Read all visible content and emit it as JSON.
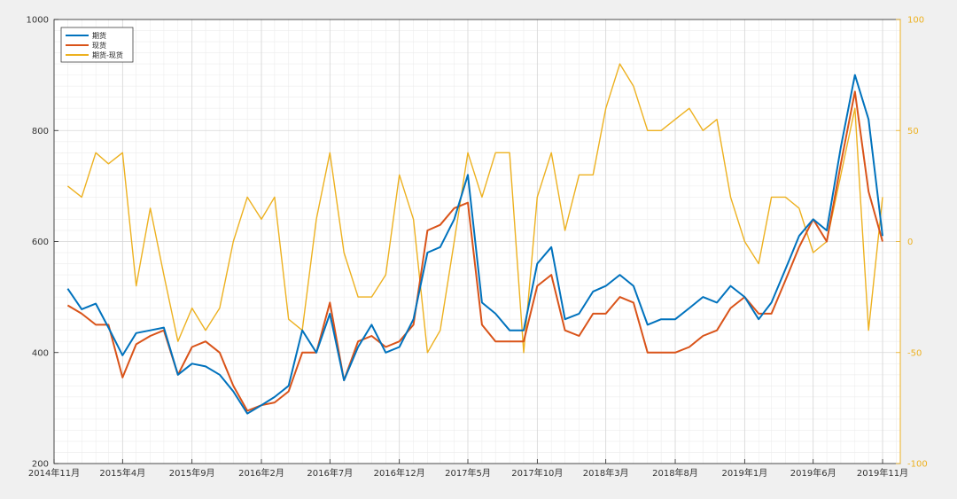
{
  "chart_data": {
    "type": "line",
    "title": "",
    "xlabel": "",
    "ylabel": "",
    "grid": true,
    "legend_position": "top-left",
    "xlim": [
      "2014-11-01",
      "2019-12-10"
    ],
    "x_ticks": [
      "2014-11-01",
      "2015-04-01",
      "2015-09-01",
      "2016-02-01",
      "2016-07-01",
      "2016-12-01",
      "2017-05-01",
      "2017-10-01",
      "2018-03-01",
      "2018-08-01",
      "2019-01-01",
      "2019-06-01",
      "2019-11-01"
    ],
    "x_tick_labels": [
      "2014年11月",
      "2015年4月",
      "2015年9月",
      "2016年2月",
      "2016年7月",
      "2016年12月",
      "2017年5月",
      "2017年10月",
      "2018年3月",
      "2018年8月",
      "2019年1月",
      "2019年6月",
      "2019年11月"
    ],
    "y_left": {
      "ylim": [
        200,
        1000
      ],
      "ticks": [
        200,
        400,
        600,
        800,
        1000
      ]
    },
    "y_right": {
      "ylim": [
        -100,
        100
      ],
      "ticks": [
        -100,
        -50,
        0,
        50,
        100
      ]
    },
    "x": [
      "2014-12-01",
      "2015-01-01",
      "2015-02-01",
      "2015-03-01",
      "2015-04-01",
      "2015-05-01",
      "2015-06-01",
      "2015-07-01",
      "2015-08-01",
      "2015-09-01",
      "2015-10-01",
      "2015-11-01",
      "2015-12-01",
      "2016-01-01",
      "2016-02-01",
      "2016-03-01",
      "2016-04-01",
      "2016-05-01",
      "2016-06-01",
      "2016-07-01",
      "2016-08-01",
      "2016-09-01",
      "2016-10-01",
      "2016-11-01",
      "2016-12-01",
      "2017-01-01",
      "2017-02-01",
      "2017-03-01",
      "2017-04-01",
      "2017-05-01",
      "2017-06-01",
      "2017-07-01",
      "2017-08-01",
      "2017-09-01",
      "2017-10-01",
      "2017-11-01",
      "2017-12-01",
      "2018-01-01",
      "2018-02-01",
      "2018-03-01",
      "2018-04-01",
      "2018-05-01",
      "2018-06-01",
      "2018-07-01",
      "2018-08-01",
      "2018-09-01",
      "2018-10-01",
      "2018-11-01",
      "2018-12-01",
      "2019-01-01",
      "2019-02-01",
      "2019-03-01",
      "2019-04-01",
      "2019-05-01",
      "2019-06-01",
      "2019-07-01",
      "2019-08-01",
      "2019-09-01",
      "2019-10-01",
      "2019-11-01"
    ],
    "series": [
      {
        "name": "期货",
        "axis": "left",
        "color": "#0072BD",
        "values": [
          515,
          478,
          488,
          445,
          395,
          435,
          440,
          445,
          360,
          380,
          375,
          360,
          330,
          290,
          305,
          320,
          340,
          440,
          400,
          470,
          350,
          410,
          450,
          400,
          410,
          460,
          580,
          590,
          640,
          720,
          490,
          470,
          440,
          440,
          560,
          590,
          460,
          470,
          510,
          520,
          540,
          520,
          450,
          460,
          460,
          480,
          500,
          490,
          520,
          500,
          460,
          490,
          550,
          610,
          640,
          620,
          770,
          900,
          820,
          610
        ]
      },
      {
        "name": "现货",
        "axis": "left",
        "color": "#D95319",
        "values": [
          485,
          470,
          450,
          450,
          355,
          415,
          430,
          440,
          360,
          410,
          420,
          400,
          340,
          295,
          305,
          310,
          330,
          400,
          400,
          490,
          350,
          420,
          430,
          410,
          420,
          450,
          620,
          630,
          660,
          670,
          450,
          420,
          420,
          420,
          520,
          540,
          440,
          430,
          470,
          470,
          500,
          490,
          400,
          400,
          400,
          410,
          430,
          440,
          480,
          500,
          470,
          470,
          530,
          590,
          640,
          600,
          740,
          870,
          690,
          600
        ]
      },
      {
        "name": "期货-现货",
        "axis": "right",
        "color": "#EDB120",
        "values": [
          25,
          20,
          40,
          35,
          40,
          -20,
          15,
          -15,
          -45,
          -30,
          -40,
          -30,
          0,
          20,
          10,
          20,
          -35,
          -40,
          10,
          40,
          -5,
          -25,
          -25,
          -15,
          30,
          10,
          -50,
          -40,
          0,
          40,
          20,
          40,
          40,
          -50,
          20,
          40,
          5,
          30,
          30,
          60,
          80,
          70,
          50,
          50,
          55,
          60,
          50,
          55,
          20,
          0,
          -10,
          20,
          20,
          15,
          -5,
          0,
          30,
          60,
          -40,
          20
        ]
      }
    ]
  }
}
